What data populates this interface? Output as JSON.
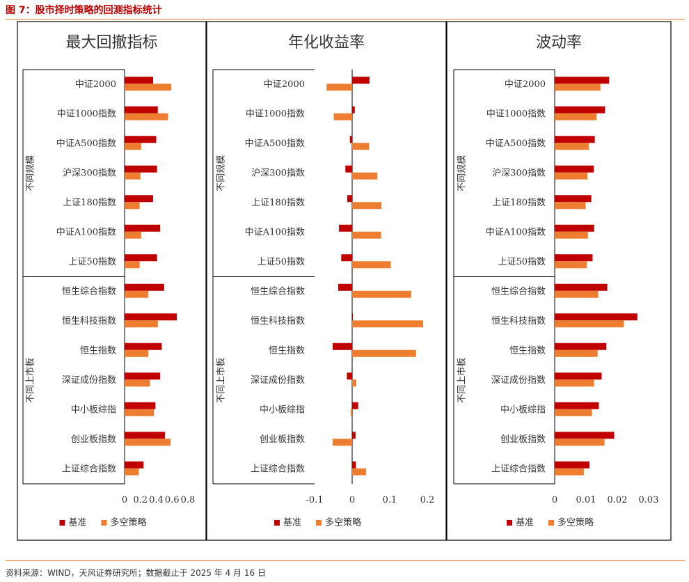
{
  "figure": {
    "title": "图 7：股市择时策略的回测指标统计",
    "source": "资料来源：WIND，天风证券研究所；数据截止于 2025 年 4 月 16 日"
  },
  "colors": {
    "series1": "#c00000",
    "series2": "#ed7d31"
  },
  "groups": [
    {
      "label": "不同规模",
      "size": 7
    },
    {
      "label": "不同上市板",
      "size": 7
    }
  ],
  "chart_data": [
    {
      "type": "bar",
      "orientation": "horizontal",
      "title": "最大回撤指标",
      "categories": [
        "中证2000",
        "中证1000指数",
        "中证A500指数",
        "沪深300指数",
        "上证180指数",
        "中证A100指数",
        "上证50指数",
        "恒生综合指数",
        "恒生科技指数",
        "恒生指数",
        "深证成份指数",
        "中小板综指",
        "创业板指数",
        "上证综合指数"
      ],
      "series": [
        {
          "name": "基准",
          "values": [
            0.36,
            0.42,
            0.4,
            0.41,
            0.36,
            0.45,
            0.41,
            0.5,
            0.66,
            0.47,
            0.45,
            0.39,
            0.51,
            0.24
          ]
        },
        {
          "name": "多空策略",
          "values": [
            0.59,
            0.55,
            0.21,
            0.2,
            0.19,
            0.21,
            0.19,
            0.3,
            0.42,
            0.3,
            0.32,
            0.37,
            0.58,
            0.18
          ]
        }
      ],
      "xlim": [
        0,
        0.8
      ],
      "xticks": [
        "0",
        "0.2",
        "0.4",
        "0.6",
        "0.8"
      ],
      "legend": "bottom"
    },
    {
      "type": "bar",
      "orientation": "horizontal",
      "title": "年化收益率",
      "categories": [
        "中证2000",
        "中证1000指数",
        "中证A500指数",
        "沪深300指数",
        "上证180指数",
        "中证A100指数",
        "上证50指数",
        "恒生综合指数",
        "恒生科技指数",
        "恒生指数",
        "深证成份指数",
        "中小板综指",
        "创业板指数",
        "上证综合指数"
      ],
      "series": [
        {
          "name": "基准",
          "values": [
            0.046,
            0.007,
            -0.006,
            -0.018,
            -0.013,
            -0.035,
            -0.029,
            -0.037,
            0.002,
            -0.052,
            -0.014,
            0.016,
            0.009,
            0.01
          ]
        },
        {
          "name": "多空策略",
          "values": [
            -0.068,
            -0.049,
            0.045,
            0.067,
            0.078,
            0.077,
            0.103,
            0.157,
            0.189,
            0.17,
            0.011,
            -0.004,
            -0.052,
            0.037
          ]
        }
      ],
      "xlim": [
        -0.1,
        0.2
      ],
      "xticks": [
        "-0.1",
        "0",
        "0.1",
        "0.2"
      ],
      "legend": "bottom"
    },
    {
      "type": "bar",
      "orientation": "horizontal",
      "title": "波动率",
      "categories": [
        "中证2000",
        "中证1000指数",
        "中证A500指数",
        "沪深300指数",
        "上证180指数",
        "中证A100指数",
        "上证50指数",
        "恒生综合指数",
        "恒生科技指数",
        "恒生指数",
        "深证成份指数",
        "中小板综指",
        "创业板指数",
        "上证综合指数"
      ],
      "series": [
        {
          "name": "基准",
          "values": [
            0.0174,
            0.0161,
            0.0128,
            0.0125,
            0.0117,
            0.0126,
            0.0121,
            0.0168,
            0.0264,
            0.0165,
            0.015,
            0.0141,
            0.019,
            0.0111
          ]
        },
        {
          "name": "多空策略",
          "values": [
            0.0146,
            0.0134,
            0.0109,
            0.0105,
            0.0099,
            0.0106,
            0.0103,
            0.0139,
            0.0221,
            0.0137,
            0.0126,
            0.0119,
            0.0159,
            0.0093
          ]
        }
      ],
      "xlim": [
        0,
        0.03
      ],
      "xticks": [
        "0",
        "0.01",
        "0.02",
        "0.03"
      ],
      "legend": "bottom"
    }
  ]
}
